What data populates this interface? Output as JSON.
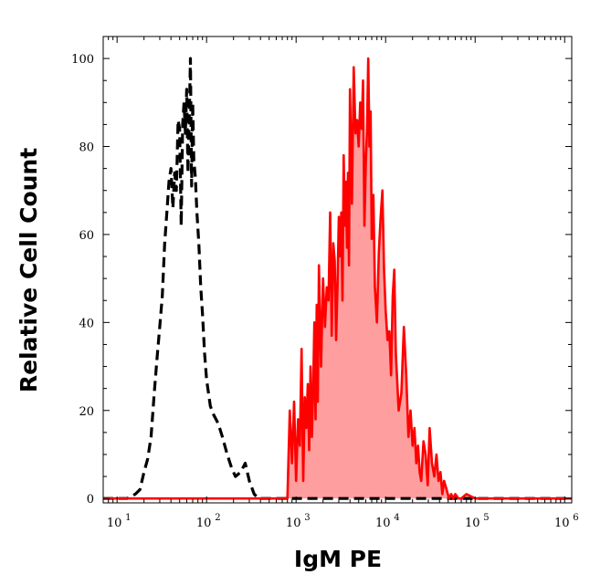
{
  "chart_data": {
    "type": "area",
    "xlabel": "IgM PE",
    "ylabel": "Relative Cell Count",
    "x_scale": "log",
    "xlim": [
      7,
      1200000
    ],
    "ylim": [
      -1,
      105
    ],
    "x_tick_labels": [
      {
        "value": 10,
        "base": "10",
        "exp": "1"
      },
      {
        "value": 100,
        "base": "10",
        "exp": "2"
      },
      {
        "value": 1000,
        "base": "10",
        "exp": "3"
      },
      {
        "value": 10000,
        "base": "10",
        "exp": "4"
      },
      {
        "value": 100000,
        "base": "10",
        "exp": "5"
      },
      {
        "value": 1000000,
        "base": "10",
        "exp": "6"
      }
    ],
    "y_ticks": [
      0,
      20,
      40,
      60,
      80,
      100
    ],
    "colors": {
      "control": "#000000",
      "sample_line": "#ff0000",
      "sample_fill": "#ff9e9e"
    },
    "series": [
      {
        "style": "dashed",
        "x": [
          7,
          13,
          16,
          18,
          20,
          22,
          24,
          26,
          28,
          30,
          32,
          34,
          36,
          38,
          40,
          42,
          44,
          46,
          48,
          50,
          52,
          54,
          56,
          58,
          60,
          62,
          64,
          66,
          68,
          70,
          72,
          75,
          78,
          82,
          86,
          90,
          95,
          100,
          110,
          120,
          135,
          150,
          170,
          190,
          210,
          240,
          270,
          300,
          340,
          380,
          1200000
        ],
        "y": [
          0,
          0,
          1,
          2,
          6,
          9,
          14,
          24,
          32,
          39,
          46,
          58,
          65,
          72,
          75,
          66,
          74,
          70,
          86,
          84,
          62,
          85,
          90,
          83,
          93,
          74,
          86,
          100,
          71,
          90,
          77,
          73,
          65,
          58,
          48,
          42,
          33,
          27,
          21,
          19,
          17,
          14,
          10,
          7,
          5,
          6,
          8,
          4,
          1,
          0,
          0
        ]
      },
      {
        "style": "solid-filled",
        "x": [
          7,
          800,
          850,
          900,
          950,
          1000,
          1050,
          1100,
          1150,
          1200,
          1250,
          1300,
          1350,
          1400,
          1450,
          1500,
          1550,
          1600,
          1650,
          1700,
          1750,
          1800,
          1900,
          2000,
          2100,
          2200,
          2300,
          2400,
          2500,
          2600,
          2700,
          2800,
          2900,
          3000,
          3100,
          3200,
          3300,
          3400,
          3500,
          3600,
          3700,
          3800,
          3900,
          4000,
          4200,
          4400,
          4600,
          4800,
          5000,
          5200,
          5400,
          5600,
          5800,
          6000,
          6200,
          6400,
          6600,
          6800,
          7000,
          7300,
          7600,
          8000,
          8400,
          8800,
          9200,
          9600,
          10000,
          10500,
          11000,
          11500,
          12000,
          12500,
          13000,
          14000,
          15000,
          16000,
          17000,
          18000,
          19000,
          20000,
          21000,
          22000,
          23000,
          24000,
          25000,
          26500,
          28000,
          29500,
          31000,
          33000,
          35000,
          37000,
          39000,
          41000,
          43000,
          45000,
          48000,
          51000,
          54000,
          57000,
          60000,
          65000,
          70000,
          80000,
          100000,
          1200000
        ],
        "y": [
          0,
          0,
          20,
          8,
          22,
          4,
          18,
          12,
          34,
          4,
          23,
          16,
          26,
          11,
          30,
          14,
          25,
          40,
          18,
          44,
          22,
          53,
          30,
          50,
          39,
          48,
          45,
          65,
          37,
          58,
          54,
          36,
          48,
          64,
          55,
          65,
          45,
          78,
          62,
          72,
          57,
          74,
          53,
          93,
          67,
          98,
          83,
          86,
          80,
          90,
          84,
          95,
          62,
          76,
          84,
          100,
          80,
          88,
          59,
          69,
          48,
          40,
          56,
          64,
          70,
          52,
          43,
          36,
          38,
          28,
          46,
          52,
          33,
          20,
          24,
          39,
          28,
          14,
          20,
          12,
          16,
          8,
          12,
          6,
          4,
          13,
          10,
          3,
          16,
          8,
          5,
          10,
          4,
          6,
          1,
          4,
          2,
          0,
          1,
          0,
          1,
          0,
          0,
          1,
          0,
          0
        ]
      }
    ]
  }
}
